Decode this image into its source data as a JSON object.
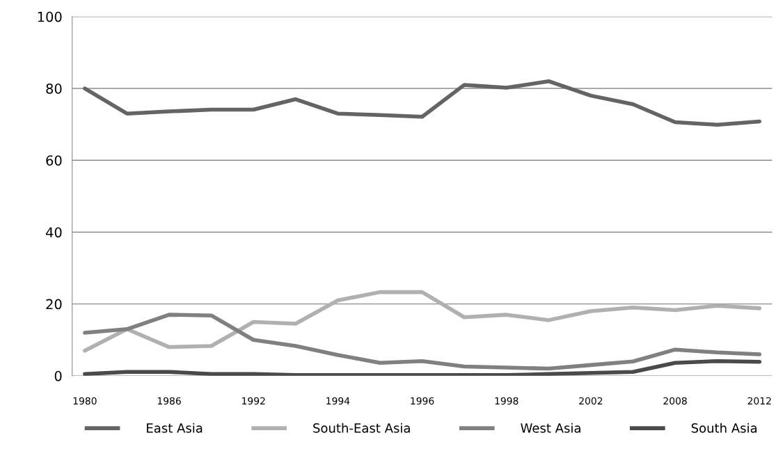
{
  "chart_data": {
    "type": "line",
    "categories": [
      "1980",
      null,
      "1986",
      null,
      "1992",
      null,
      "1994",
      null,
      "1996",
      null,
      "1998",
      null,
      "2002",
      null,
      "2008",
      null,
      "2012"
    ],
    "series": [
      {
        "name": "East Asia",
        "color": "#646464",
        "values": [
          80,
          73,
          73.6,
          74.1,
          74.1,
          77,
          73,
          72.6,
          72.1,
          81,
          80.2,
          82,
          78,
          75.6,
          70.6,
          69.9,
          70.8
        ]
      },
      {
        "name": "South-East Asia",
        "color": "#b0b0b0",
        "values": [
          7,
          13,
          8,
          8.3,
          15,
          14.5,
          21,
          23.3,
          23.3,
          16.3,
          17,
          15.5,
          18,
          19,
          18.3,
          19.5,
          18.8
        ]
      },
      {
        "name": "West Asia",
        "color": "#808080",
        "values": [
          12,
          13,
          17,
          16.8,
          10,
          8.3,
          5.8,
          3.6,
          4.1,
          2.6,
          2.3,
          2,
          3,
          4,
          7.3,
          6.5,
          6
        ]
      },
      {
        "name": "South Asia",
        "color": "#4a4a4a",
        "values": [
          0.5,
          1.1,
          1.1,
          0.5,
          0.5,
          0.2,
          0.2,
          0.2,
          0.2,
          0.2,
          0.2,
          0.5,
          0.8,
          1.1,
          3.6,
          4.1,
          3.9
        ]
      }
    ],
    "ylim": [
      0,
      100
    ],
    "yticks": [
      0,
      20,
      40,
      60,
      80,
      100
    ],
    "grid": "y",
    "legend": "bottom",
    "marker": "none",
    "line_style": "solid"
  }
}
